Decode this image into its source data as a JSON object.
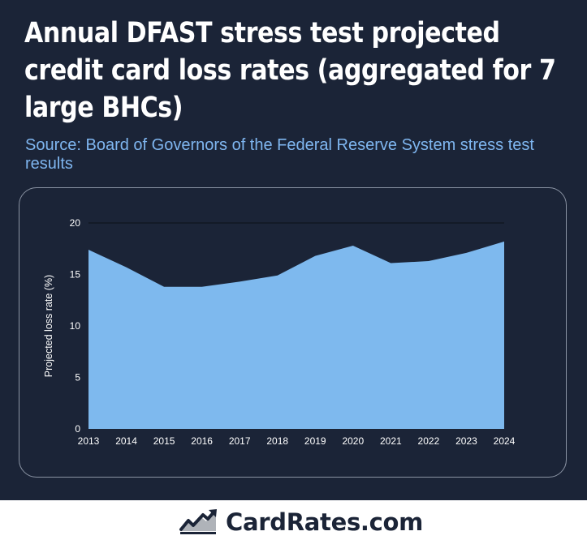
{
  "header": {
    "title": "Annual DFAST stress test projected credit card loss rates (aggregated for 7 large BHCs)",
    "subtitle": "Source: Board of Governors of the Federal Reserve System stress test results"
  },
  "chart_data": {
    "type": "area",
    "title": "Annual DFAST stress test projected credit card loss rates (aggregated for 7 large BHCs)",
    "xlabel": "",
    "ylabel": "Projected loss rate (%)",
    "x": [
      "2013",
      "2014",
      "2015",
      "2016",
      "2017",
      "2018",
      "2019",
      "2020",
      "2021",
      "2022",
      "2023",
      "2024"
    ],
    "series": [
      {
        "values": [
          17.4,
          15.7,
          13.8,
          13.8,
          14.3,
          14.9,
          16.8,
          17.8,
          16.1,
          16.3,
          17.1,
          18.2
        ]
      }
    ],
    "ylim": [
      0,
      20
    ],
    "yticks": [
      0,
      5,
      10,
      15,
      20
    ],
    "grid": false,
    "legend": "none",
    "colors": {
      "fill": "#7eb9ee",
      "background": "#1b2437",
      "text": "#ffffff"
    }
  },
  "footer": {
    "brand": "CardRates.com",
    "logo_icon": "trending-chart-icon",
    "colors": {
      "brand": "#1b2437"
    }
  }
}
